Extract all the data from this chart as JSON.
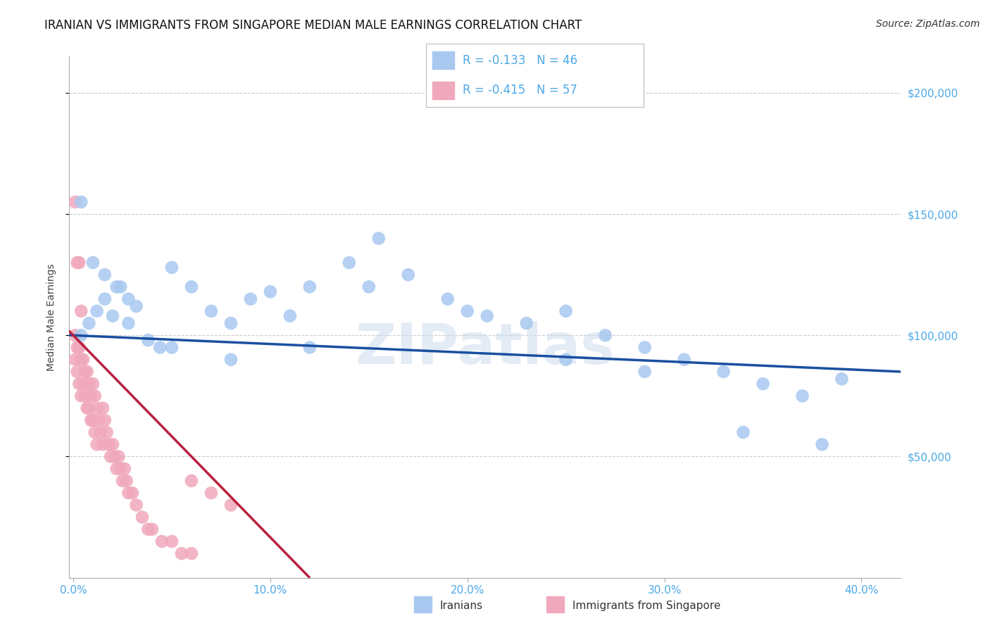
{
  "title": "IRANIAN VS IMMIGRANTS FROM SINGAPORE MEDIAN MALE EARNINGS CORRELATION CHART",
  "source": "Source: ZipAtlas.com",
  "ylabel": "Median Male Earnings",
  "ytick_labels": [
    "$50,000",
    "$100,000",
    "$150,000",
    "$200,000"
  ],
  "ytick_vals": [
    50000,
    100000,
    150000,
    200000
  ],
  "xtick_labels": [
    "0.0%",
    "10.0%",
    "20.0%",
    "30.0%",
    "40.0%"
  ],
  "xtick_vals": [
    0.0,
    0.1,
    0.2,
    0.3,
    0.4
  ],
  "ylim": [
    0,
    215000
  ],
  "xlim": [
    -0.002,
    0.42
  ],
  "watermark": "ZIPatlas",
  "blue_scatter_x": [
    0.004,
    0.008,
    0.012,
    0.016,
    0.02,
    0.024,
    0.028,
    0.032,
    0.038,
    0.044,
    0.05,
    0.06,
    0.07,
    0.08,
    0.09,
    0.1,
    0.11,
    0.12,
    0.14,
    0.155,
    0.17,
    0.19,
    0.21,
    0.23,
    0.25,
    0.27,
    0.29,
    0.31,
    0.33,
    0.35,
    0.37,
    0.39,
    0.004,
    0.01,
    0.016,
    0.022,
    0.028,
    0.05,
    0.08,
    0.12,
    0.15,
    0.2,
    0.25,
    0.29,
    0.34,
    0.38
  ],
  "blue_scatter_y": [
    100000,
    105000,
    110000,
    115000,
    108000,
    120000,
    105000,
    112000,
    98000,
    95000,
    128000,
    120000,
    110000,
    105000,
    115000,
    118000,
    108000,
    120000,
    130000,
    140000,
    125000,
    115000,
    108000,
    105000,
    110000,
    100000,
    95000,
    90000,
    85000,
    80000,
    75000,
    82000,
    155000,
    130000,
    125000,
    120000,
    115000,
    95000,
    90000,
    95000,
    120000,
    110000,
    90000,
    85000,
    60000,
    55000
  ],
  "pink_scatter_x": [
    0.001,
    0.001,
    0.002,
    0.002,
    0.003,
    0.003,
    0.004,
    0.004,
    0.005,
    0.005,
    0.006,
    0.006,
    0.007,
    0.007,
    0.008,
    0.008,
    0.009,
    0.009,
    0.01,
    0.01,
    0.011,
    0.011,
    0.012,
    0.012,
    0.013,
    0.014,
    0.015,
    0.015,
    0.016,
    0.017,
    0.018,
    0.019,
    0.02,
    0.021,
    0.022,
    0.023,
    0.024,
    0.025,
    0.026,
    0.027,
    0.028,
    0.03,
    0.032,
    0.035,
    0.038,
    0.04,
    0.045,
    0.05,
    0.055,
    0.06,
    0.001,
    0.002,
    0.003,
    0.004,
    0.06,
    0.07,
    0.08
  ],
  "pink_scatter_y": [
    100000,
    90000,
    95000,
    85000,
    95000,
    80000,
    90000,
    75000,
    90000,
    80000,
    85000,
    75000,
    85000,
    70000,
    80000,
    70000,
    75000,
    65000,
    80000,
    65000,
    75000,
    60000,
    70000,
    55000,
    65000,
    60000,
    70000,
    55000,
    65000,
    60000,
    55000,
    50000,
    55000,
    50000,
    45000,
    50000,
    45000,
    40000,
    45000,
    40000,
    35000,
    35000,
    30000,
    25000,
    20000,
    20000,
    15000,
    15000,
    10000,
    10000,
    155000,
    130000,
    130000,
    110000,
    40000,
    35000,
    30000
  ],
  "blue_color": "#a8c8f0",
  "pink_color": "#f0a8bc",
  "trend_blue_color": "#1a4fa0",
  "trend_pink_color": "#b82040",
  "tick_color": "#4da8e8",
  "grid_color": "#cccccc",
  "title_fontsize": 12,
  "tick_fontsize": 11,
  "ylabel_fontsize": 10,
  "legend_fontsize": 12,
  "source_fontsize": 10
}
